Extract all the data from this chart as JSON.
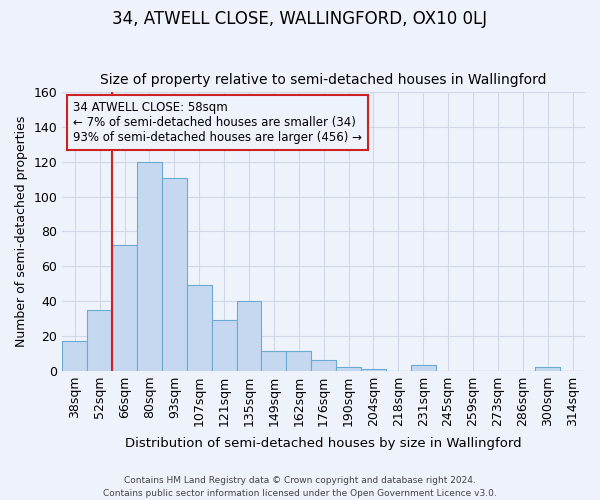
{
  "title": "34, ATWELL CLOSE, WALLINGFORD, OX10 0LJ",
  "subtitle": "Size of property relative to semi-detached houses in Wallingford",
  "xlabel": "Distribution of semi-detached houses by size in Wallingford",
  "ylabel": "Number of semi-detached properties",
  "footer_line1": "Contains HM Land Registry data © Crown copyright and database right 2024.",
  "footer_line2": "Contains public sector information licensed under the Open Government Licence v3.0.",
  "categories": [
    "38sqm",
    "52sqm",
    "66sqm",
    "80sqm",
    "93sqm",
    "107sqm",
    "121sqm",
    "135sqm",
    "149sqm",
    "162sqm",
    "176sqm",
    "190sqm",
    "204sqm",
    "218sqm",
    "231sqm",
    "245sqm",
    "259sqm",
    "273sqm",
    "286sqm",
    "300sqm",
    "314sqm"
  ],
  "values": [
    17,
    35,
    72,
    120,
    111,
    49,
    29,
    40,
    11,
    11,
    6,
    2,
    1,
    0,
    3,
    0,
    0,
    0,
    0,
    2,
    0
  ],
  "bar_color": "#c5d8f0",
  "bar_edge_color": "#6aaad4",
  "highlight_bar_index": 1,
  "highlight_color": "#cc2222",
  "annotation_line1": "34 ATWELL CLOSE: 58sqm",
  "annotation_line2": "← 7% of semi-detached houses are smaller (34)",
  "annotation_line3": "93% of semi-detached houses are larger (456) →",
  "annotation_box_edge_color": "#cc2222",
  "annotation_fontsize": 8.5,
  "ylim": [
    0,
    160
  ],
  "yticks": [
    0,
    20,
    40,
    60,
    80,
    100,
    120,
    140,
    160
  ],
  "background_color": "#eef2fb",
  "grid_color": "#d0d8e8",
  "title_fontsize": 12,
  "subtitle_fontsize": 10,
  "xlabel_fontsize": 9.5,
  "ylabel_fontsize": 9,
  "tick_fontsize": 9
}
